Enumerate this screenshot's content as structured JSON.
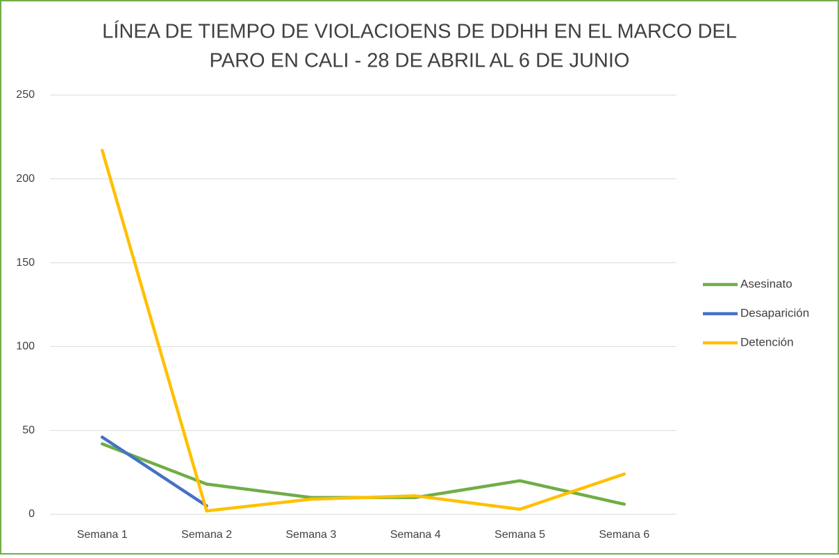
{
  "chart_data": {
    "type": "line",
    "title": [
      "LÍNEA DE TIEMPO DE VIOLACIOENS DE DDHH EN EL MARCO DEL",
      "PARO EN CALI - 28 DE ABRIL AL 6 DE JUNIO"
    ],
    "categories": [
      "Semana 1",
      "Semana 2",
      "Semana 3",
      "Semana 4",
      "Semana 5",
      "Semana 6"
    ],
    "series": [
      {
        "name": "Asesinato",
        "color": "#70ad47",
        "values": [
          42,
          18,
          10,
          10,
          20,
          6
        ]
      },
      {
        "name": "Desaparición",
        "color": "#4472c4",
        "values": [
          46,
          5,
          null,
          null,
          null,
          null
        ]
      },
      {
        "name": "Detención",
        "color": "#ffc000",
        "values": [
          217,
          2,
          9,
          11,
          3,
          24
        ]
      }
    ],
    "ylim": [
      0,
      250
    ],
    "yticks": [
      0,
      50,
      100,
      150,
      200,
      250
    ],
    "grid": true,
    "legend": "right"
  }
}
